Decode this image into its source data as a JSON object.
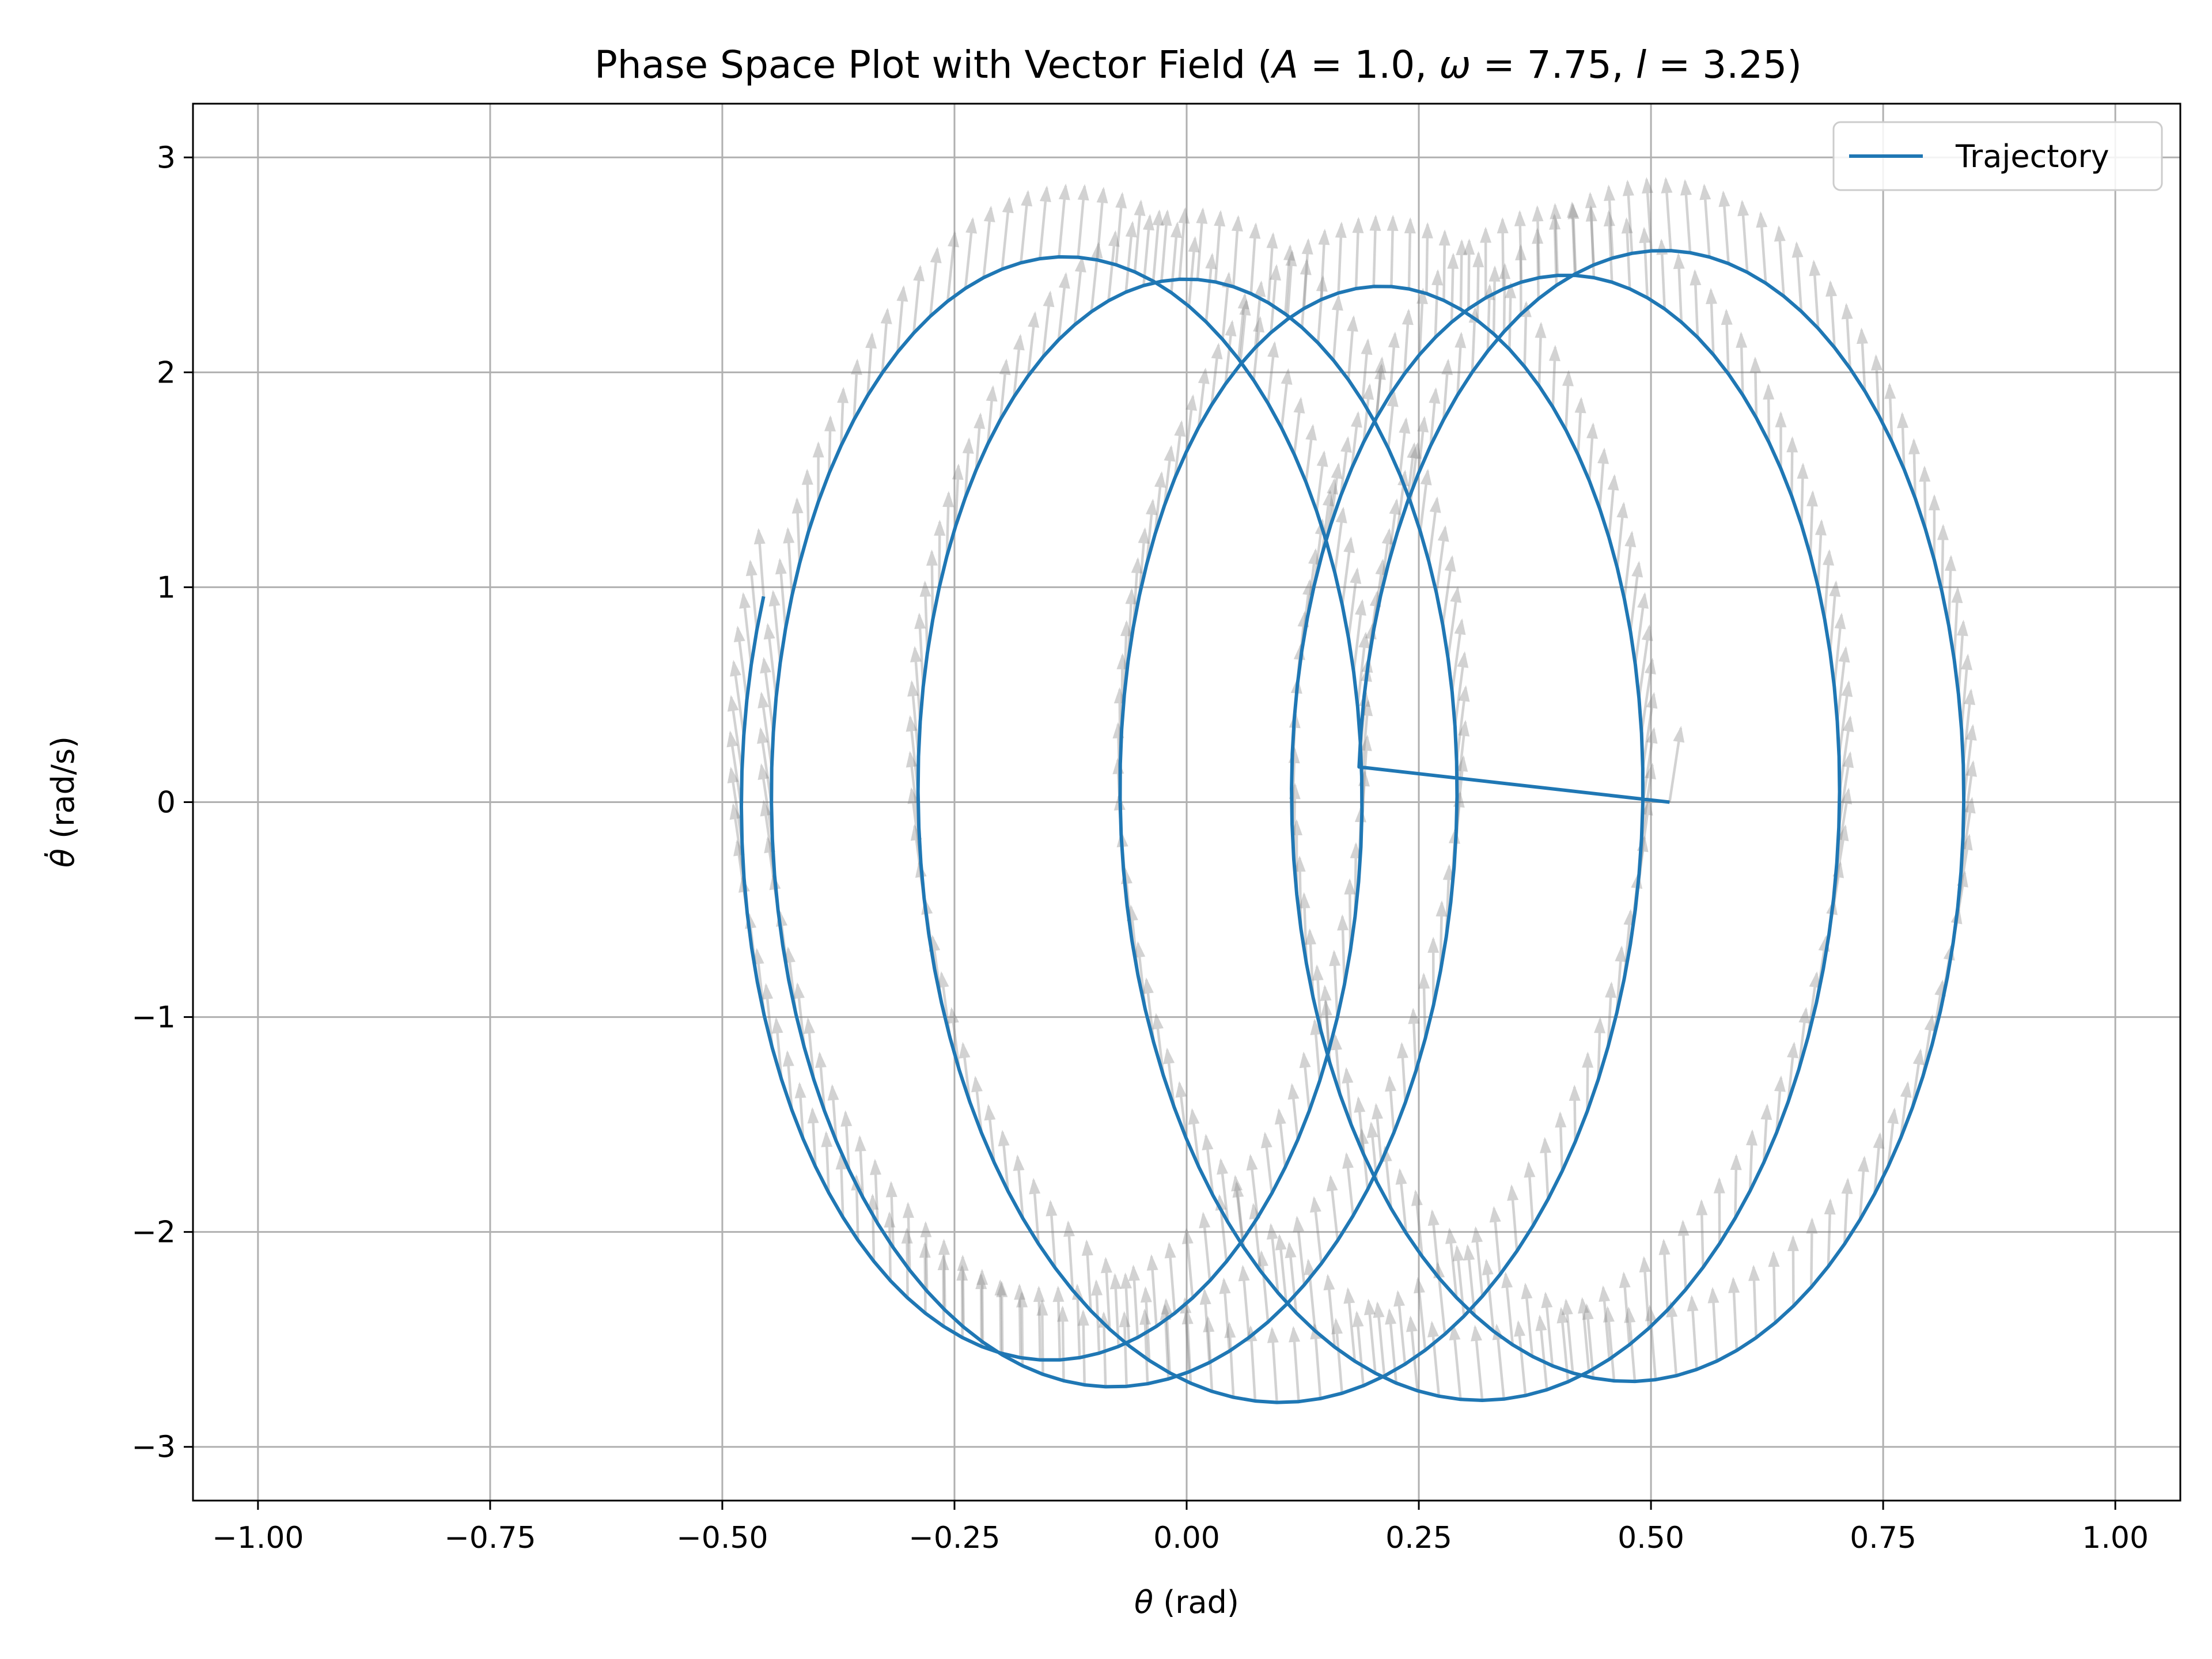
{
  "chart_data": {
    "type": "line",
    "title": "Phase Space Plot with Vector Field (A = 1.0, ω = 7.75, l = 3.25)",
    "title_parts": {
      "prefix": "Phase Space Plot with Vector Field (",
      "sym_A": "A",
      "eq_A": " = 1.0, ",
      "sym_omega": "ω",
      "eq_omega": " = 7.75, ",
      "sym_l": "l",
      "eq_l": " = 3.25)"
    },
    "xlabel": "θ (rad)",
    "xlabel_parts": {
      "symbol": "θ",
      "unit": " (rad)"
    },
    "ylabel": "θ̇ (rad/s)",
    "ylabel_parts": {
      "symbol": "θ̇",
      "unit": " (rad/s)"
    },
    "xlim": [
      -1.07,
      1.07
    ],
    "ylim": [
      -3.25,
      3.25
    ],
    "x_ticks": [
      -1.0,
      -0.75,
      -0.5,
      -0.25,
      0.0,
      0.25,
      0.5,
      0.75,
      1.0
    ],
    "x_tick_labels": [
      "−1.00",
      "−0.75",
      "−0.50",
      "−0.25",
      "0.00",
      "0.25",
      "0.50",
      "0.75",
      "1.00"
    ],
    "y_ticks": [
      -3,
      -2,
      -1,
      0,
      1,
      2,
      3
    ],
    "y_tick_labels": [
      "−3",
      "−2",
      "−1",
      "0",
      "1",
      "2",
      "3"
    ],
    "grid": true,
    "legend_position": "top-right",
    "series": [
      {
        "name": "Trajectory",
        "color": "#1f77b4",
        "form": "superposition of a slow drift oscillation and a fast loop oscillation",
        "start": [
          0.52,
          0.0
        ],
        "drift_amplitude": 0.335,
        "drift_center": 0.185,
        "drift_angular_frequency": 0.82,
        "loop_x_amplitude": 0.335,
        "loop_y_amplitude": 2.6,
        "loop_angular_frequency": 7.75,
        "t_end": 4.1,
        "samples": 500
      }
    ],
    "vector_field": {
      "type": "quiver",
      "color": "#808080",
      "opacity": 0.35,
      "direction": "mostly upward, angle varies with θ and θ̇",
      "point_count": 340
    }
  }
}
